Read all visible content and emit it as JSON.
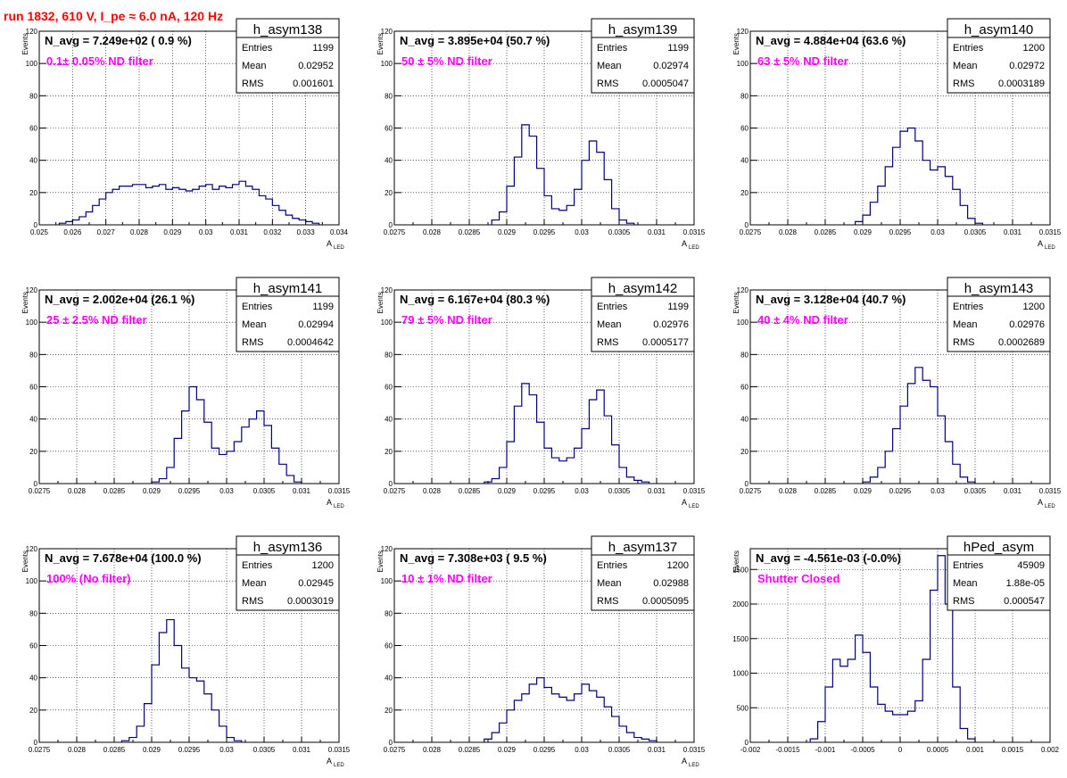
{
  "header": {
    "run_title": "run 1832,   610 V, I_pe ≈ 6.0 nA, 120 Hz"
  },
  "colors": {
    "histogram": "#000080",
    "filter_label": "#ff00ff",
    "run_title": "#ff0000",
    "grid": "#000000"
  },
  "stat_labels": {
    "entries": "Entries",
    "mean": "Mean",
    "rms": "RMS"
  },
  "axis": {
    "ylabel": "Events",
    "xlabel_main": "A",
    "xlabel_sub": "LED"
  },
  "chart_data": [
    {
      "type": "bar",
      "name": "h_asym138",
      "navg": "N_avg = 7.249e+02 ( 0.9 %)",
      "filter": "0.1± 0.05% ND filter",
      "stats": {
        "entries": "1199",
        "mean": "0.02952",
        "rms": "0.001601"
      },
      "xlim": [
        0.025,
        0.034
      ],
      "ylim": [
        0,
        120
      ],
      "xticks": [
        0.025,
        0.026,
        0.027,
        0.028,
        0.029,
        0.03,
        0.031,
        0.032,
        0.033,
        0.034
      ],
      "xtick_labels": [
        "0.025",
        "0.026",
        "0.027",
        "0.028",
        "0.029",
        "0.03",
        "0.031",
        "0.032",
        "0.033",
        "0.034"
      ],
      "yticks": [
        0,
        20,
        40,
        60,
        80,
        100,
        120
      ],
      "ytick_labels": [
        "0",
        "20",
        "40",
        "60",
        "80",
        "100",
        "120"
      ],
      "show_xlabel": true,
      "x": [
        0.0257,
        0.0259,
        0.0261,
        0.0263,
        0.0265,
        0.0267,
        0.0269,
        0.0271,
        0.0273,
        0.0275,
        0.0277,
        0.0279,
        0.0281,
        0.0283,
        0.0285,
        0.0287,
        0.0289,
        0.0291,
        0.0293,
        0.0295,
        0.0297,
        0.0299,
        0.0301,
        0.0303,
        0.0305,
        0.0307,
        0.0309,
        0.0311,
        0.0313,
        0.0315,
        0.0317,
        0.0319,
        0.0321,
        0.0323,
        0.0325,
        0.0327,
        0.0329,
        0.0331,
        0.0333
      ],
      "values": [
        1,
        2,
        3,
        5,
        8,
        12,
        16,
        20,
        22,
        24,
        24,
        25,
        25,
        23,
        24,
        25,
        22,
        23,
        22,
        21,
        22,
        24,
        25,
        22,
        24,
        23,
        25,
        27,
        24,
        22,
        18,
        16,
        12,
        9,
        6,
        4,
        3,
        2,
        1
      ]
    },
    {
      "type": "bar",
      "name": "h_asym139",
      "navg": "N_avg = 3.895e+04 (50.7 %)",
      "filter": "50 ± 5% ND filter",
      "stats": {
        "entries": "1199",
        "mean": "0.02974",
        "rms": "0.0005047"
      },
      "xlim": [
        0.0275,
        0.0315
      ],
      "ylim": [
        0,
        120
      ],
      "xticks": [
        0.0275,
        0.028,
        0.0285,
        0.029,
        0.0295,
        0.03,
        0.0305,
        0.031,
        0.0315
      ],
      "xtick_labels": [
        "0.0275",
        "0.028",
        "0.0285",
        "0.029",
        "0.0295",
        "0.03",
        "0.0305",
        "0.031",
        "0.0315"
      ],
      "yticks": [
        0,
        20,
        40,
        60,
        80,
        100,
        120
      ],
      "ytick_labels": [
        "0",
        "20",
        "40",
        "60",
        "80",
        "100",
        "120"
      ],
      "show_xlabel": true,
      "x": [
        0.02885,
        0.02895,
        0.02905,
        0.02915,
        0.02925,
        0.02935,
        0.02945,
        0.02955,
        0.02965,
        0.02975,
        0.02985,
        0.02995,
        0.03005,
        0.03015,
        0.03025,
        0.03035,
        0.03045,
        0.03055,
        0.03065
      ],
      "values": [
        3,
        8,
        24,
        42,
        62,
        55,
        35,
        18,
        10,
        9,
        12,
        22,
        40,
        52,
        45,
        28,
        10,
        3,
        1
      ]
    },
    {
      "type": "bar",
      "name": "h_asym140",
      "navg": "N_avg = 4.884e+04 (63.6 %)",
      "filter": "63 ± 5% ND filter",
      "stats": {
        "entries": "1200",
        "mean": "0.02972",
        "rms": "0.0003189"
      },
      "xlim": [
        0.0275,
        0.0315
      ],
      "ylim": [
        0,
        120
      ],
      "xticks": [
        0.0275,
        0.028,
        0.0285,
        0.029,
        0.0295,
        0.03,
        0.0305,
        0.031,
        0.0315
      ],
      "xtick_labels": [
        "0.0275",
        "0.028",
        "0.0285",
        "0.029",
        "0.0295",
        "0.03",
        "0.0305",
        "0.031",
        "0.0315"
      ],
      "yticks": [
        0,
        20,
        40,
        60,
        80,
        100,
        120
      ],
      "ytick_labels": [
        "0",
        "20",
        "40",
        "60",
        "80",
        "100",
        "120"
      ],
      "show_xlabel": true,
      "x": [
        0.02895,
        0.02905,
        0.02915,
        0.02925,
        0.02935,
        0.02945,
        0.02955,
        0.02965,
        0.02975,
        0.02985,
        0.02995,
        0.03005,
        0.03015,
        0.03025,
        0.03035,
        0.03045,
        0.03055
      ],
      "values": [
        2,
        6,
        14,
        24,
        36,
        48,
        58,
        60,
        52,
        40,
        34,
        36,
        30,
        22,
        12,
        4,
        1
      ]
    },
    {
      "type": "bar",
      "name": "h_asym141",
      "navg": "N_avg = 2.002e+04 (26.1 %)",
      "filter": "25 ± 2.5% ND filter",
      "stats": {
        "entries": "1199",
        "mean": "0.02994",
        "rms": "0.0004642"
      },
      "xlim": [
        0.0275,
        0.0315
      ],
      "ylim": [
        0,
        120
      ],
      "xticks": [
        0.0275,
        0.028,
        0.0285,
        0.029,
        0.0295,
        0.03,
        0.0305,
        0.031,
        0.0315
      ],
      "xtick_labels": [
        "0.0275",
        "0.028",
        "0.0285",
        "0.029",
        "0.0295",
        "0.03",
        "0.0305",
        "0.031",
        "0.0315"
      ],
      "yticks": [
        0,
        20,
        40,
        60,
        80,
        100,
        120
      ],
      "ytick_labels": [
        "0",
        "20",
        "40",
        "60",
        "80",
        "100",
        "120"
      ],
      "show_xlabel": true,
      "x": [
        0.02905,
        0.02915,
        0.02925,
        0.02935,
        0.02945,
        0.02955,
        0.02965,
        0.02975,
        0.02985,
        0.02995,
        0.03005,
        0.03015,
        0.03025,
        0.03035,
        0.03045,
        0.03055,
        0.03065,
        0.03075,
        0.03085,
        0.03095
      ],
      "values": [
        1,
        3,
        10,
        28,
        45,
        60,
        52,
        38,
        22,
        18,
        20,
        26,
        35,
        40,
        45,
        36,
        22,
        12,
        5,
        1
      ]
    },
    {
      "type": "bar",
      "name": "h_asym142",
      "navg": "N_avg = 6.167e+04 (80.3 %)",
      "filter": "79 ± 5% ND filter",
      "stats": {
        "entries": "1199",
        "mean": "0.02976",
        "rms": "0.0005177"
      },
      "xlim": [
        0.0275,
        0.0315
      ],
      "ylim": [
        0,
        120
      ],
      "xticks": [
        0.0275,
        0.028,
        0.0285,
        0.029,
        0.0295,
        0.03,
        0.0305,
        0.031,
        0.0315
      ],
      "xtick_labels": [
        "0.0275",
        "0.028",
        "0.0285",
        "0.029",
        "0.0295",
        "0.03",
        "0.0305",
        "0.031",
        "0.0315"
      ],
      "yticks": [
        0,
        20,
        40,
        60,
        80,
        100,
        120
      ],
      "ytick_labels": [
        "0",
        "20",
        "40",
        "60",
        "80",
        "100",
        "120"
      ],
      "show_xlabel": true,
      "x": [
        0.02875,
        0.02885,
        0.02895,
        0.02905,
        0.02915,
        0.02925,
        0.02935,
        0.02945,
        0.02955,
        0.02965,
        0.02975,
        0.02985,
        0.02995,
        0.03005,
        0.03015,
        0.03025,
        0.03035,
        0.03045,
        0.03055,
        0.03065,
        0.03075,
        0.03085
      ],
      "values": [
        1,
        3,
        10,
        26,
        48,
        62,
        55,
        38,
        22,
        16,
        14,
        16,
        22,
        34,
        52,
        58,
        42,
        24,
        10,
        4,
        2,
        1
      ]
    },
    {
      "type": "bar",
      "name": "h_asym143",
      "navg": "N_avg = 3.128e+04 (40.7 %)",
      "filter": "40 ± 4% ND filter",
      "stats": {
        "entries": "1200",
        "mean": "0.02976",
        "rms": "0.0002689"
      },
      "xlim": [
        0.0275,
        0.0315
      ],
      "ylim": [
        0,
        120
      ],
      "xticks": [
        0.0275,
        0.028,
        0.0285,
        0.029,
        0.0295,
        0.03,
        0.0305,
        0.031,
        0.0315
      ],
      "xtick_labels": [
        "0.0275",
        "0.028",
        "0.0285",
        "0.029",
        "0.0295",
        "0.03",
        "0.0305",
        "0.031",
        "0.0315"
      ],
      "yticks": [
        0,
        20,
        40,
        60,
        80,
        100,
        120
      ],
      "ytick_labels": [
        "0",
        "20",
        "40",
        "60",
        "80",
        "100",
        "120"
      ],
      "show_xlabel": true,
      "x": [
        0.02905,
        0.02915,
        0.02925,
        0.02935,
        0.02945,
        0.02955,
        0.02965,
        0.02975,
        0.02985,
        0.02995,
        0.03005,
        0.03015,
        0.03025,
        0.03035,
        0.03045
      ],
      "values": [
        1,
        4,
        10,
        20,
        34,
        48,
        62,
        72,
        64,
        60,
        42,
        26,
        12,
        4,
        1
      ]
    },
    {
      "type": "bar",
      "name": "h_asym136",
      "navg": "N_avg = 7.678e+04 (100.0 %)",
      "filter": "100% (No filter)",
      "stats": {
        "entries": "1200",
        "mean": "0.02945",
        "rms": "0.0003019"
      },
      "xlim": [
        0.0275,
        0.0315
      ],
      "ylim": [
        0,
        120
      ],
      "xticks": [
        0.0275,
        0.028,
        0.0285,
        0.029,
        0.0295,
        0.03,
        0.0305,
        0.031,
        0.0315
      ],
      "xtick_labels": [
        "0.0275",
        "0.028",
        "0.0285",
        "0.029",
        "0.0295",
        "0.03",
        "0.0305",
        "0.031",
        "0.0315"
      ],
      "yticks": [
        0,
        20,
        40,
        60,
        80,
        100,
        120
      ],
      "ytick_labels": [
        "0",
        "20",
        "40",
        "60",
        "80",
        "100",
        "120"
      ],
      "show_xlabel": true,
      "x": [
        0.02865,
        0.02875,
        0.02885,
        0.02895,
        0.02905,
        0.02915,
        0.02925,
        0.02935,
        0.02945,
        0.02955,
        0.02965,
        0.02975,
        0.02985,
        0.02995,
        0.03005,
        0.03015
      ],
      "values": [
        1,
        3,
        10,
        24,
        48,
        68,
        76,
        60,
        46,
        40,
        38,
        30,
        20,
        10,
        3,
        1
      ]
    },
    {
      "type": "bar",
      "name": "h_asym137",
      "navg": "N_avg = 7.308e+03 ( 9.5 %)",
      "filter": "10 ± 1% ND filter",
      "stats": {
        "entries": "1200",
        "mean": "0.02988",
        "rms": "0.0005095"
      },
      "xlim": [
        0.0275,
        0.0315
      ],
      "ylim": [
        0,
        120
      ],
      "xticks": [
        0.0275,
        0.028,
        0.0285,
        0.029,
        0.0295,
        0.03,
        0.0305,
        0.031,
        0.0315
      ],
      "xtick_labels": [
        "0.0275",
        "0.028",
        "0.0285",
        "0.029",
        "0.0295",
        "0.03",
        "0.0305",
        "0.031",
        "0.0315"
      ],
      "yticks": [
        0,
        20,
        40,
        60,
        80,
        100,
        120
      ],
      "ytick_labels": [
        "0",
        "20",
        "40",
        "60",
        "80",
        "100",
        "120"
      ],
      "show_xlabel": true,
      "x": [
        0.02875,
        0.02885,
        0.02895,
        0.02905,
        0.02915,
        0.02925,
        0.02935,
        0.02945,
        0.02955,
        0.02965,
        0.02975,
        0.02985,
        0.02995,
        0.03005,
        0.03015,
        0.03025,
        0.03035,
        0.03045,
        0.03055,
        0.03065,
        0.03075,
        0.03085,
        0.03095
      ],
      "values": [
        2,
        6,
        12,
        20,
        26,
        30,
        36,
        40,
        34,
        30,
        28,
        26,
        30,
        36,
        32,
        28,
        22,
        16,
        10,
        6,
        3,
        2,
        1
      ]
    },
    {
      "type": "bar",
      "name": "hPed_asym",
      "navg": "N_avg = -4.561e-03 (-0.0%)",
      "filter": "Shutter Closed",
      "stats": {
        "entries": "45909",
        "mean": "1.88e-05",
        "rms": "0.000547"
      },
      "xlim": [
        -0.002,
        0.002
      ],
      "ylim": [
        0,
        2800
      ],
      "xticks": [
        -0.002,
        -0.0015,
        -0.001,
        -0.0005,
        0,
        0.0005,
        0.001,
        0.0015,
        0.002
      ],
      "xtick_labels": [
        "-0.002",
        "-0.0015",
        "-0.001",
        "-0.0005",
        "0",
        "0.0005",
        "0.001",
        "0.0015",
        "0.002"
      ],
      "yticks": [
        0,
        500,
        1000,
        1500,
        2000,
        2500
      ],
      "ytick_labels": [
        "0",
        "500",
        "1000",
        "1500",
        "2000",
        "2500"
      ],
      "show_xlabel": false,
      "x": [
        -0.00115,
        -0.00105,
        -0.00095,
        -0.00085,
        -0.00075,
        -0.00065,
        -0.00055,
        -0.00045,
        -0.00035,
        -0.00025,
        -0.00015,
        -5e-05,
        5e-05,
        0.00015,
        0.00025,
        0.00035,
        0.00045,
        0.00055,
        0.00065,
        0.00075,
        0.00085,
        0.00095
      ],
      "values": [
        50,
        300,
        800,
        1200,
        1100,
        1200,
        1550,
        1300,
        800,
        550,
        450,
        400,
        400,
        450,
        600,
        1200,
        2200,
        2700,
        2000,
        800,
        200,
        50
      ]
    }
  ]
}
